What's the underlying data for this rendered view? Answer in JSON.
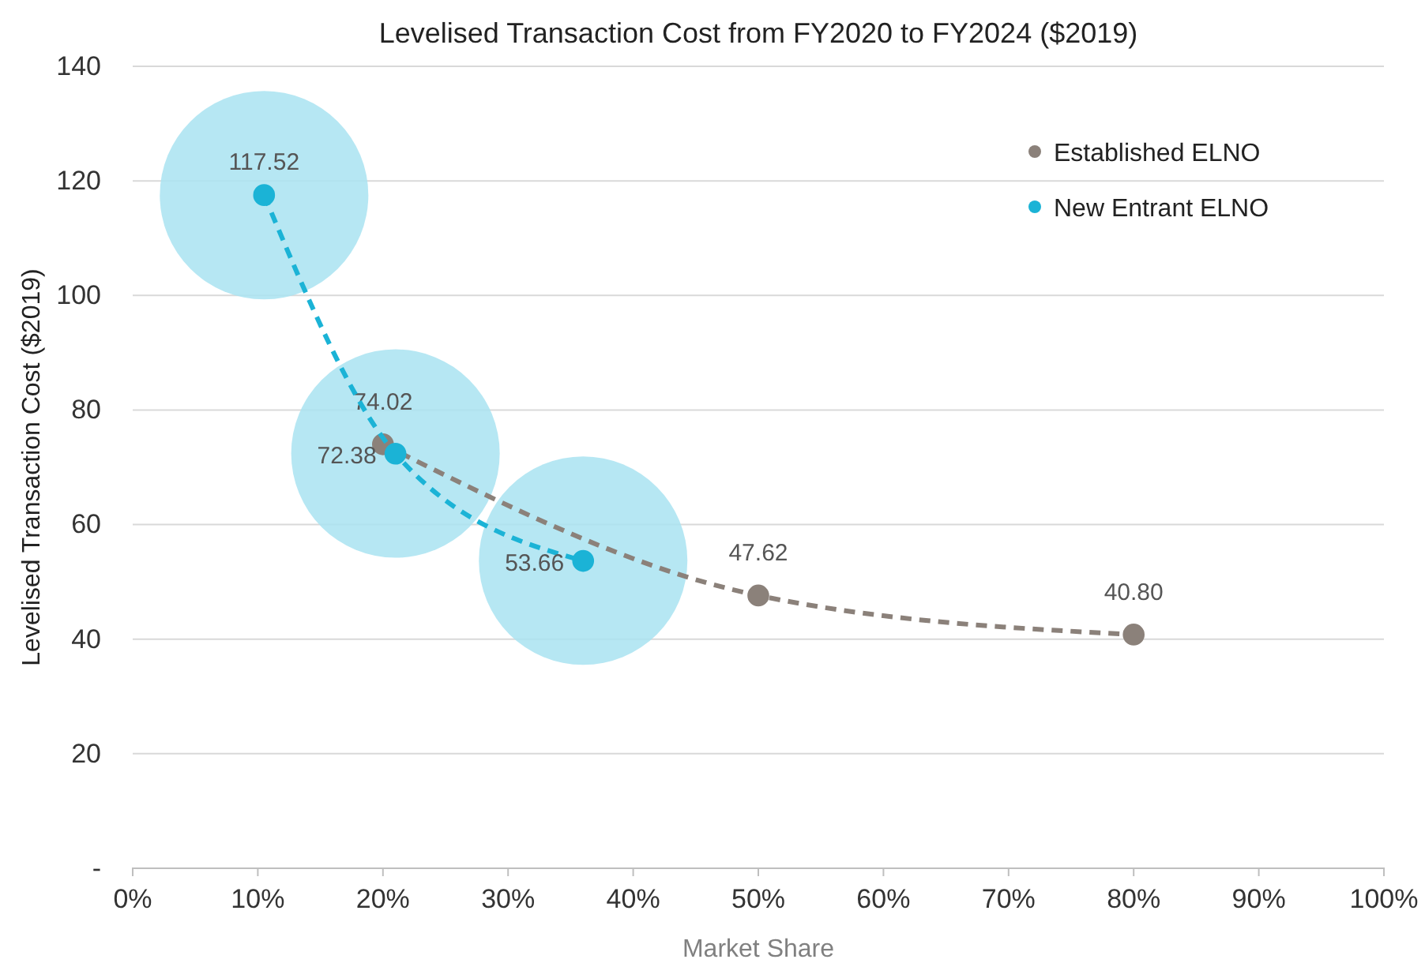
{
  "chart_data": {
    "type": "line",
    "title": "Levelised Transaction Cost from FY2020 to FY2024 ($2019)",
    "xlabel": "Market Share",
    "ylabel": "Levelised Transaction Cost ($2019)",
    "xlim": [
      0,
      100
    ],
    "xticks": [
      {
        "value": 0,
        "label": "0%"
      },
      {
        "value": 10,
        "label": "10%"
      },
      {
        "value": 20,
        "label": "20%"
      },
      {
        "value": 30,
        "label": "30%"
      },
      {
        "value": 40,
        "label": "40%"
      },
      {
        "value": 50,
        "label": "50%"
      },
      {
        "value": 60,
        "label": "60%"
      },
      {
        "value": 70,
        "label": "70%"
      },
      {
        "value": 80,
        "label": "80%"
      },
      {
        "value": 90,
        "label": "90%"
      },
      {
        "value": 100,
        "label": "100%"
      }
    ],
    "ylim": [
      0,
      140
    ],
    "yticks": [
      {
        "value": 0,
        "label": "-"
      },
      20,
      40,
      60,
      80,
      100,
      120,
      140
    ],
    "grid": "y",
    "legend": "top right",
    "marker": "circle",
    "line_style": "dashed",
    "series": [
      {
        "type": "bubble",
        "color": "#a9e3f1",
        "x": [
          10.5,
          21,
          36
        ],
        "values": [
          117.5,
          72.4,
          53.7
        ],
        "sizes": [
          1,
          1,
          1
        ]
      },
      {
        "name": "Established ELNO",
        "color": "#8b817a",
        "x": [
          20,
          50,
          80
        ],
        "values": [
          74.02,
          47.62,
          40.8
        ],
        "value_labels": [
          "74.02",
          "47.62",
          "40.80"
        ]
      },
      {
        "name": "New Entrant ELNO",
        "color": "#1bb3d6",
        "x": [
          10.5,
          21,
          36
        ],
        "values": [
          117.52,
          72.38,
          53.66
        ],
        "value_labels": [
          "117.52",
          "72.38",
          "53.66"
        ]
      }
    ]
  }
}
